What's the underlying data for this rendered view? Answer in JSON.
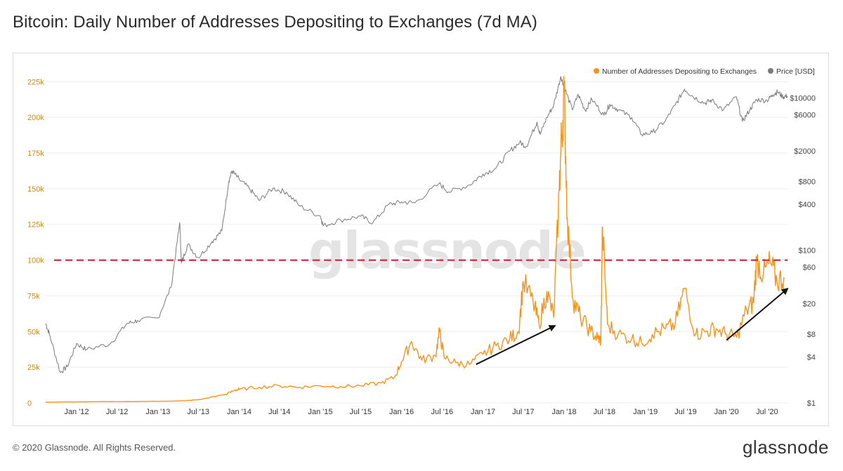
{
  "title": "Bitcoin: Daily Number of Addresses Depositing to Exchanges (7d MA)",
  "footer": "© 2020 Glassnode. All Rights Reserved.",
  "logo_text": "glassnode",
  "watermark_text": "glassnode",
  "colors": {
    "addresses": "#f7931a",
    "price": "#7a7a7a",
    "reference_line": "#d0142c",
    "arrow": "#111111",
    "left_axis_text": "#c98a1e",
    "grid": "#eeeeee"
  },
  "chart_data": {
    "type": "line",
    "title": "Bitcoin: Daily Number of Addresses Depositing to Exchanges (7d MA)",
    "legend": [
      "Number of Addresses Depositing to Exchanges",
      "Price [USD]"
    ],
    "legend_position": "top-right",
    "grid": true,
    "x_range": [
      "2011-08-15",
      "2020-10-01"
    ],
    "x_ticks": [
      "Jan '12",
      "Jul '12",
      "Jan '13",
      "Jul '13",
      "Jan '14",
      "Jul '14",
      "Jan '15",
      "Jul '15",
      "Jan '16",
      "Jul '16",
      "Jan '17",
      "Jul '17",
      "Jan '18",
      "Jul '18",
      "Jan '19",
      "Jul '19",
      "Jan '20",
      "Jul '20"
    ],
    "x_tick_dates": [
      "2012-01-01",
      "2012-07-01",
      "2013-01-01",
      "2013-07-01",
      "2014-01-01",
      "2014-07-01",
      "2015-01-01",
      "2015-07-01",
      "2016-01-01",
      "2016-07-01",
      "2017-01-01",
      "2017-07-01",
      "2018-01-01",
      "2018-07-01",
      "2019-01-01",
      "2019-07-01",
      "2020-01-01",
      "2020-07-01"
    ],
    "y_left": {
      "label": "",
      "range": [
        0,
        235000
      ],
      "ticks": [
        0,
        25000,
        50000,
        75000,
        100000,
        125000,
        150000,
        175000,
        200000,
        225000
      ],
      "tick_labels": [
        "0",
        "25k",
        "50k",
        "75k",
        "100k",
        "125k",
        "150k",
        "175k",
        "200k",
        "225k"
      ]
    },
    "y_right": {
      "label": "",
      "scale": "log",
      "range": [
        1,
        25000
      ],
      "ticks": [
        1,
        4,
        8,
        20,
        60,
        100,
        400,
        800,
        2000,
        6000,
        10000
      ],
      "tick_labels": [
        "$1",
        "$4",
        "$8",
        "$20",
        "$60",
        "$100",
        "$400",
        "$800",
        "$2000",
        "$6000",
        "$10000"
      ]
    },
    "reference_line": {
      "axis": "left",
      "value": 100000,
      "style": "dashed"
    },
    "series": [
      {
        "name": "Number of Addresses Depositing to Exchanges",
        "axis": "left",
        "x": [
          "2011-08-15",
          "2012-01-01",
          "2012-07-01",
          "2013-01-01",
          "2013-05-01",
          "2013-07-01",
          "2013-11-01",
          "2013-12-15",
          "2014-01-01",
          "2014-04-01",
          "2014-07-01",
          "2014-10-01",
          "2015-01-01",
          "2015-04-01",
          "2015-07-01",
          "2015-10-01",
          "2015-12-01",
          "2016-01-01",
          "2016-02-15",
          "2016-04-01",
          "2016-06-01",
          "2016-06-20",
          "2016-07-10",
          "2016-09-01",
          "2016-11-01",
          "2017-01-01",
          "2017-03-01",
          "2017-05-01",
          "2017-06-10",
          "2017-07-01",
          "2017-08-15",
          "2017-09-10",
          "2017-10-15",
          "2017-11-15",
          "2017-12-10",
          "2017-12-20",
          "2018-01-01",
          "2018-01-15",
          "2018-02-10",
          "2018-03-15",
          "2018-05-01",
          "2018-06-01",
          "2018-06-15",
          "2018-06-22",
          "2018-07-15",
          "2018-09-01",
          "2018-11-01",
          "2018-12-15",
          "2019-02-01",
          "2019-04-01",
          "2019-05-15",
          "2019-06-26",
          "2019-08-15",
          "2019-10-01",
          "2019-11-15",
          "2020-01-01",
          "2020-02-15",
          "2020-04-01",
          "2020-05-01",
          "2020-05-15",
          "2020-06-15",
          "2020-07-15",
          "2020-08-15",
          "2020-09-15"
        ],
        "values": [
          500,
          700,
          900,
          1100,
          1500,
          2200,
          6000,
          9000,
          9500,
          11000,
          12000,
          11000,
          12000,
          11500,
          12000,
          14000,
          18000,
          29000,
          43000,
          30000,
          33000,
          50000,
          32000,
          28000,
          27000,
          34000,
          40000,
          45000,
          50000,
          85000,
          70000,
          55000,
          78000,
          60000,
          150000,
          185000,
          218000,
          130000,
          72000,
          60000,
          50000,
          45000,
          44000,
          123000,
          55000,
          48000,
          45000,
          42000,
          48000,
          52000,
          55000,
          80000,
          48000,
          50000,
          52000,
          48000,
          46000,
          65000,
          70000,
          100000,
          90000,
          98000,
          85000,
          88000
        ]
      },
      {
        "name": "Price [USD]",
        "axis": "right",
        "scale": "log",
        "x": [
          "2011-08-15",
          "2011-09-01",
          "2011-10-20",
          "2011-11-20",
          "2012-01-01",
          "2012-02-15",
          "2012-06-01",
          "2012-08-15",
          "2012-10-01",
          "2013-01-01",
          "2013-03-01",
          "2013-04-09",
          "2013-04-16",
          "2013-05-15",
          "2013-07-01",
          "2013-09-01",
          "2013-10-15",
          "2013-11-15",
          "2013-11-30",
          "2014-01-01",
          "2014-02-15",
          "2014-04-01",
          "2014-06-01",
          "2014-08-01",
          "2014-10-01",
          "2015-01-01",
          "2015-01-14",
          "2015-04-01",
          "2015-07-01",
          "2015-08-25",
          "2015-11-04",
          "2016-01-01",
          "2016-03-01",
          "2016-06-18",
          "2016-08-01",
          "2016-11-01",
          "2017-01-01",
          "2017-03-01",
          "2017-05-01",
          "2017-06-15",
          "2017-07-15",
          "2017-09-01",
          "2017-09-15",
          "2017-10-15",
          "2017-11-15",
          "2017-12-17",
          "2018-01-01",
          "2018-02-06",
          "2018-03-05",
          "2018-04-06",
          "2018-05-05",
          "2018-06-29",
          "2018-07-25",
          "2018-09-01",
          "2018-11-01",
          "2018-12-15",
          "2019-02-01",
          "2019-04-01",
          "2019-05-15",
          "2019-06-26",
          "2019-08-01",
          "2019-09-25",
          "2019-10-26",
          "2019-12-18",
          "2020-02-14",
          "2020-03-12",
          "2020-04-15",
          "2020-05-15",
          "2020-07-01",
          "2020-07-28",
          "2020-08-17",
          "2020-09-10",
          "2020-10-01"
        ],
        "values": [
          11,
          8,
          2.5,
          3,
          6,
          5,
          6,
          11,
          12,
          13,
          33,
          230,
          68,
          120,
          80,
          130,
          180,
          800,
          1100,
          850,
          650,
          450,
          650,
          580,
          380,
          280,
          210,
          250,
          280,
          230,
          400,
          430,
          420,
          750,
          580,
          720,
          1000,
          1200,
          2000,
          2600,
          2300,
          4800,
          3300,
          5500,
          8000,
          19000,
          14000,
          7000,
          11000,
          6800,
          9600,
          5900,
          8200,
          7000,
          5500,
          3300,
          3500,
          5000,
          8000,
          13000,
          10500,
          8500,
          9300,
          6900,
          10300,
          4900,
          7000,
          9500,
          9200,
          11000,
          12000,
          10300,
          10600
        ]
      }
    ],
    "annotations": [
      {
        "type": "arrow",
        "from": {
          "x": "2016-12-01",
          "y": 27000
        },
        "to": {
          "x": "2017-11-20",
          "y": 54000
        }
      },
      {
        "type": "arrow",
        "from": {
          "x": "2020-01-01",
          "y": 44000
        },
        "to": {
          "x": "2020-10-01",
          "y": 80000
        }
      }
    ]
  }
}
